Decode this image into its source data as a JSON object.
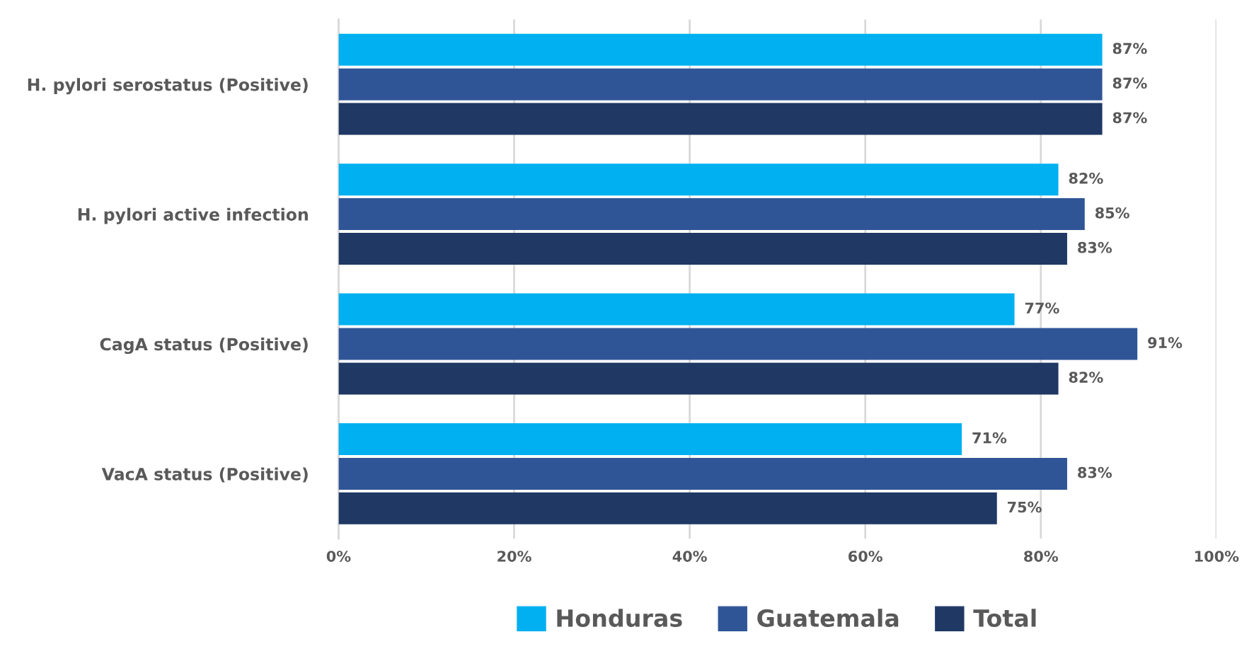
{
  "chart_data": {
    "type": "bar",
    "orientation": "horizontal",
    "categories": [
      "H. pylori serostatus (Positive)",
      "H. pylori active infection",
      "CagA status (Positive)",
      "VacA status (Positive)"
    ],
    "series": [
      {
        "name": "Honduras",
        "color": "#00b0f0",
        "values": [
          87,
          82,
          77,
          71
        ],
        "value_labels": [
          "87%",
          "82%",
          "77%",
          "71%"
        ]
      },
      {
        "name": "Guatemala",
        "color": "#2f5597",
        "values": [
          87,
          85,
          91,
          83
        ],
        "value_labels": [
          "87%",
          "85%",
          "91%",
          "83%"
        ]
      },
      {
        "name": "Total",
        "color": "#1f3864",
        "values": [
          87,
          83,
          82,
          75
        ],
        "value_labels": [
          "87%",
          "83%",
          "82%",
          "75%"
        ]
      }
    ],
    "xlim": [
      0,
      100
    ],
    "xticks": [
      {
        "value": 0,
        "label": "0%"
      },
      {
        "value": 20,
        "label": "20%"
      },
      {
        "value": 40,
        "label": "40%"
      },
      {
        "value": 60,
        "label": "60%"
      },
      {
        "value": 80,
        "label": "80%"
      },
      {
        "value": 100,
        "label": "100%"
      }
    ],
    "grid": "x",
    "legend": "bottom"
  }
}
